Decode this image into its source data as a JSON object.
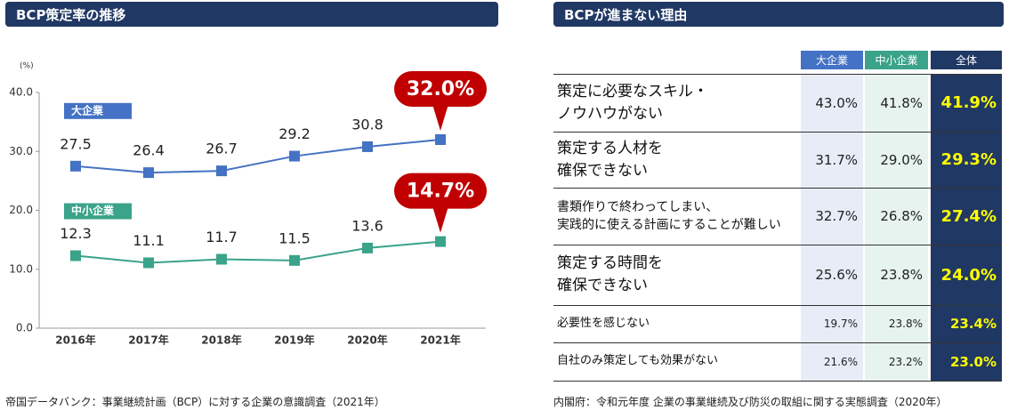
{
  "chart_data": {
    "type": "line",
    "title": "BCP策定率の推移",
    "y_unit": "(%)",
    "categories": [
      "2016年",
      "2017年",
      "2018年",
      "2019年",
      "2020年",
      "2021年"
    ],
    "series": [
      {
        "name": "大企業",
        "color": "#4472c4",
        "values": [
          27.5,
          26.4,
          26.7,
          29.2,
          30.8,
          32.0
        ],
        "value_labels": [
          "27.5",
          "26.4",
          "26.7",
          "29.2",
          "30.8",
          "32.0%"
        ]
      },
      {
        "name": "中小企業",
        "color": "#3aa38a",
        "values": [
          12.3,
          11.1,
          11.7,
          11.5,
          13.6,
          14.7
        ],
        "value_labels": [
          "12.3",
          "11.1",
          "11.7",
          "11.5",
          "13.6",
          "14.7%"
        ]
      }
    ],
    "ylim": [
      0,
      40
    ],
    "yticks": [
      {
        "value": 0,
        "label": "0.0"
      },
      {
        "value": 10,
        "label": "10.0"
      },
      {
        "value": 20,
        "label": "20.0"
      },
      {
        "value": 30,
        "label": "30.0"
      },
      {
        "value": 40,
        "label": "40.0"
      }
    ],
    "grid": false,
    "callout_color": "#c00000",
    "source": "帝国データバンク：事業継続計画（BCP）に対する企業の意識調査（2021年）"
  },
  "table": {
    "title": "BCPが進まない理由",
    "columns": [
      "大企業",
      "中小企業",
      "全体"
    ],
    "rows": [
      {
        "label": "策定に必要なスキル・\nノウハウがない",
        "values": [
          "43.0%",
          "41.8%",
          "41.9%"
        ]
      },
      {
        "label": "策定する人材を\n確保できない",
        "values": [
          "31.7%",
          "29.0%",
          "29.3%"
        ]
      },
      {
        "label": "書類作りで終わってしまい、\n実践的に使える計画にすることが難しい",
        "values": [
          "32.7%",
          "26.8%",
          "27.4%"
        ]
      },
      {
        "label": "策定する時間を\n確保できない",
        "values": [
          "25.6%",
          "23.8%",
          "24.0%"
        ]
      },
      {
        "label": "必要性を感じない",
        "values": [
          "19.7%",
          "23.8%",
          "23.4%"
        ]
      },
      {
        "label": "自社のみ策定しても効果がない",
        "values": [
          "21.6%",
          "23.2%",
          "23.0%"
        ]
      }
    ],
    "source": "内閣府：令和元年度 企業の事業継続及び防災の取組に関する実態調査（2020年）"
  }
}
